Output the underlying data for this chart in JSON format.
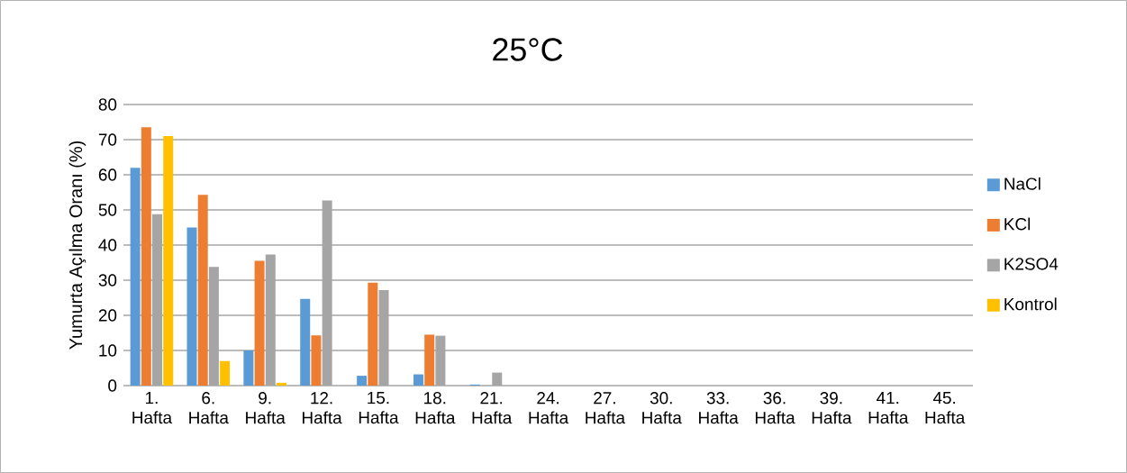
{
  "chart_data": {
    "type": "bar",
    "title": "25°C",
    "ylabel": "Yumurta Açılma Oranı (%)",
    "categories": [
      "1. Hafta",
      "6. Hafta",
      "9. Hafta",
      "12. Hafta",
      "15. Hafta",
      "18. Hafta",
      "21. Hafta",
      "24. Hafta",
      "27. Hafta",
      "30. Hafta",
      "33. Hafta",
      "36. Hafta",
      "39. Hafta",
      "41. Hafta",
      "45. Hafta"
    ],
    "series": [
      {
        "name": "NaCl",
        "color": "#5b9bd5",
        "values": [
          62,
          45,
          10,
          24.7,
          2.8,
          3.2,
          0.3,
          0,
          0,
          0,
          0,
          0,
          0,
          0,
          0
        ]
      },
      {
        "name": "KCl",
        "color": "#ed7d31",
        "values": [
          73.5,
          54.3,
          35.5,
          14.3,
          29.3,
          14.5,
          0,
          0,
          0,
          0,
          0,
          0,
          0,
          0,
          0
        ]
      },
      {
        "name": "K2SO4",
        "color": "#a5a5a5",
        "values": [
          48.8,
          33.8,
          37.3,
          52.7,
          27.2,
          14.2,
          3.7,
          0,
          0,
          0,
          0,
          0,
          0,
          0,
          0
        ]
      },
      {
        "name": "Kontrol",
        "color": "#ffc000",
        "values": [
          71,
          7,
          0.8,
          0,
          0,
          0,
          0,
          0,
          0,
          0,
          0,
          0,
          0,
          0,
          0
        ]
      }
    ],
    "ylim": [
      0,
      80
    ],
    "yticks": [
      0,
      10,
      20,
      30,
      40,
      50,
      60,
      70,
      80
    ],
    "grid": "y",
    "legend": "right"
  }
}
